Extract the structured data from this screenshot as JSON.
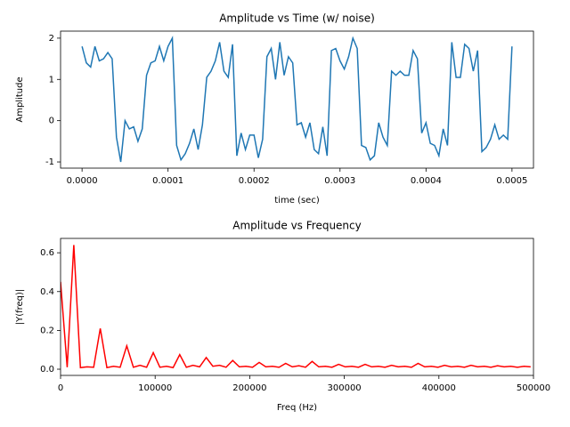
{
  "chart_data": [
    {
      "type": "line",
      "title": "Amplitude vs Time (w/ noise)",
      "x_label": "time (sec)",
      "y_label": "Amplitude",
      "x": [
        0,
        5e-06,
        1e-05,
        1.5e-05,
        2e-05,
        2.5e-05,
        3e-05,
        3.5e-05,
        4e-05,
        4.5e-05,
        5e-05,
        5.5e-05,
        6e-05,
        6.5e-05,
        7e-05,
        7.5e-05,
        8e-05,
        8.5e-05,
        9e-05,
        9.5e-05,
        0.0001,
        0.000105,
        0.00011,
        0.000115,
        0.00012,
        0.000125,
        0.00013,
        0.000135,
        0.00014,
        0.000145,
        0.00015,
        0.000155,
        0.00016,
        0.000165,
        0.00017,
        0.000175,
        0.00018,
        0.000185,
        0.00019,
        0.000195,
        0.0002,
        0.000205,
        0.00021,
        0.000215,
        0.00022,
        0.000225,
        0.00023,
        0.000235,
        0.00024,
        0.000245,
        0.00025,
        0.000255,
        0.00026,
        0.000265,
        0.00027,
        0.000275,
        0.00028,
        0.000285,
        0.00029,
        0.000295,
        0.0003,
        0.000305,
        0.00031,
        0.000315,
        0.00032,
        0.000325,
        0.00033,
        0.000335,
        0.00034,
        0.000345,
        0.00035,
        0.000355,
        0.00036,
        0.000365,
        0.00037,
        0.000375,
        0.00038,
        0.000385,
        0.00039,
        0.000395,
        0.0004,
        0.000405,
        0.00041,
        0.000415,
        0.00042,
        0.000425,
        0.00043,
        0.000435,
        0.00044,
        0.000445,
        0.00045,
        0.000455,
        0.00046,
        0.000465,
        0.00047,
        0.000475,
        0.00048,
        0.000485,
        0.00049,
        0.000495,
        0.0005
      ],
      "series": [
        {
          "color": "#1f77b4",
          "values": [
            1.8,
            1.4,
            1.3,
            1.8,
            1.45,
            1.5,
            1.65,
            1.5,
            -0.4,
            -1.0,
            0.0,
            -0.2,
            -0.15,
            -0.5,
            -0.2,
            1.1,
            1.4,
            1.45,
            1.8,
            1.45,
            1.8,
            2.0,
            -0.6,
            -0.95,
            -0.8,
            -0.55,
            -0.2,
            -0.7,
            -0.1,
            1.05,
            1.2,
            1.45,
            1.9,
            1.2,
            1.05,
            1.85,
            -0.85,
            -0.3,
            -0.7,
            -0.35,
            -0.35,
            -0.9,
            -0.45,
            1.55,
            1.75,
            1.0,
            1.9,
            1.1,
            1.55,
            1.4,
            -0.1,
            -0.05,
            -0.4,
            -0.05,
            -0.7,
            -0.8,
            -0.15,
            -0.85,
            1.7,
            1.75,
            1.45,
            1.25,
            1.55,
            2.0,
            1.75,
            -0.6,
            -0.65,
            -0.95,
            -0.85,
            -0.05,
            -0.4,
            -0.6,
            1.2,
            1.1,
            1.2,
            1.1,
            1.1,
            1.7,
            1.5,
            -0.3,
            -0.05,
            -0.55,
            -0.6,
            -0.85,
            -0.2,
            -0.6,
            1.9,
            1.05,
            1.05,
            1.85,
            1.75,
            1.2,
            1.7,
            -0.75,
            -0.65,
            -0.45,
            -0.1,
            -0.45,
            -0.35,
            -0.45,
            1.8
          ]
        }
      ],
      "xlim": [
        -2.5e-05,
        0.000525
      ],
      "xticks": [
        {
          "value": 0,
          "label": "0.0000"
        },
        {
          "value": 0.0001,
          "label": "0.0001"
        },
        {
          "value": 0.0002,
          "label": "0.0002"
        },
        {
          "value": 0.0003,
          "label": "0.0003"
        },
        {
          "value": 0.0004,
          "label": "0.0004"
        },
        {
          "value": 0.0005,
          "label": "0.0005"
        }
      ],
      "ylim": [
        -1.15,
        2.17
      ],
      "yticks": [
        -1,
        0,
        1,
        2
      ],
      "grid": false
    },
    {
      "type": "line",
      "title": "Amplitude vs Frequency",
      "x_label": "Freq (Hz)",
      "y_label": "|Y(freq)|",
      "x": [
        0,
        7000,
        14000,
        21000,
        28000,
        35000,
        42000,
        49000,
        56000,
        63000,
        70000,
        77000,
        84000,
        91000,
        98000,
        105000,
        112000,
        119000,
        126000,
        133000,
        140000,
        147000,
        154000,
        161000,
        168000,
        175000,
        182000,
        189000,
        196000,
        203000,
        210000,
        217000,
        224000,
        231000,
        238000,
        245000,
        252000,
        259000,
        266000,
        273000,
        280000,
        287000,
        294000,
        301000,
        308000,
        315000,
        322000,
        329000,
        336000,
        343000,
        350000,
        357000,
        364000,
        371000,
        378000,
        385000,
        392000,
        399000,
        406000,
        413000,
        420000,
        427000,
        434000,
        441000,
        448000,
        455000,
        462000,
        469000,
        476000,
        483000,
        490000,
        497000
      ],
      "series": [
        {
          "color": "#ff0000",
          "values": [
            0.45,
            0.01,
            0.64,
            0.008,
            0.012,
            0.01,
            0.21,
            0.008,
            0.015,
            0.01,
            0.12,
            0.01,
            0.02,
            0.01,
            0.085,
            0.01,
            0.015,
            0.008,
            0.075,
            0.01,
            0.02,
            0.012,
            0.06,
            0.015,
            0.02,
            0.01,
            0.045,
            0.012,
            0.015,
            0.01,
            0.035,
            0.012,
            0.015,
            0.01,
            0.03,
            0.012,
            0.018,
            0.01,
            0.04,
            0.012,
            0.015,
            0.01,
            0.025,
            0.012,
            0.015,
            0.01,
            0.025,
            0.012,
            0.015,
            0.01,
            0.02,
            0.012,
            0.015,
            0.01,
            0.03,
            0.012,
            0.015,
            0.01,
            0.02,
            0.012,
            0.015,
            0.01,
            0.02,
            0.012,
            0.015,
            0.01,
            0.018,
            0.012,
            0.015,
            0.01,
            0.015,
            0.012
          ]
        }
      ],
      "xlim": [
        0,
        500000
      ],
      "xticks": [
        0,
        100000,
        200000,
        300000,
        400000,
        500000
      ],
      "ylim": [
        -0.032,
        0.674
      ],
      "yticks": [
        {
          "value": 0,
          "label": "0.0"
        },
        {
          "value": 0.2,
          "label": "0.2"
        },
        {
          "value": 0.4,
          "label": "0.4"
        },
        {
          "value": 0.6,
          "label": "0.6"
        }
      ],
      "grid": false
    }
  ]
}
